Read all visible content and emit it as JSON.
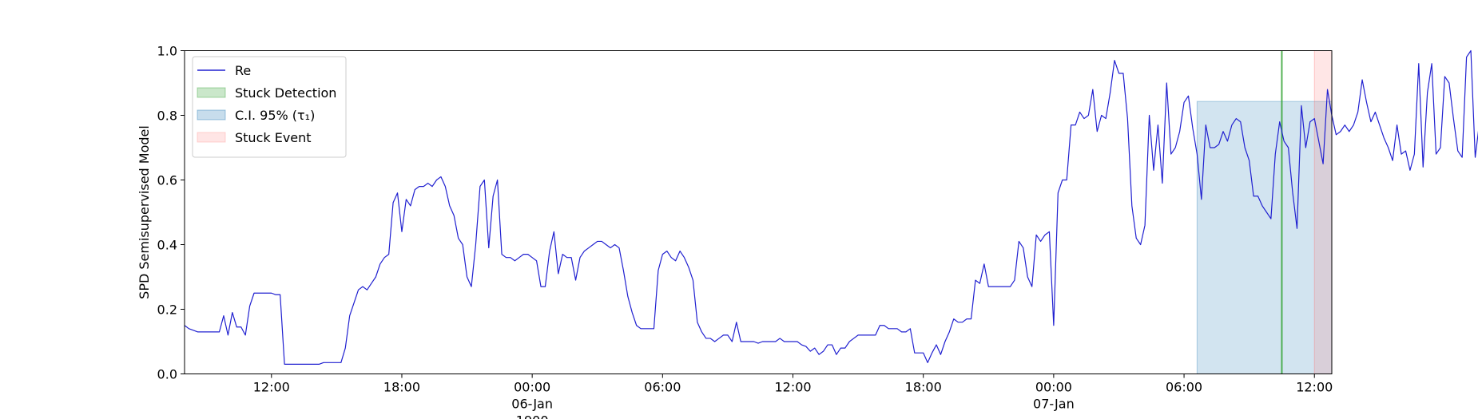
{
  "chart_data": {
    "type": "line",
    "ylabel": "SPD Semisupervised Model",
    "xlabel": "",
    "ylim": [
      0.0,
      1.0
    ],
    "xlim": [
      "1900-01-05T08:00",
      "1900-01-07T12:48"
    ],
    "yticks": [
      {
        "value": 0.0,
        "label": "0.0"
      },
      {
        "value": 0.2,
        "label": "0.2"
      },
      {
        "value": 0.4,
        "label": "0.4"
      },
      {
        "value": 0.6,
        "label": "0.6"
      },
      {
        "value": 0.8,
        "label": "0.8"
      },
      {
        "value": 1.0,
        "label": "1.0"
      }
    ],
    "xticks": [
      {
        "value": "1900-01-05T12:00",
        "label": "12:00"
      },
      {
        "value": "1900-01-05T18:00",
        "label": "18:00"
      },
      {
        "value": "1900-01-06T00:00",
        "label": "00:00",
        "sublabel": "06-Jan",
        "sublabel2": "1900"
      },
      {
        "value": "1900-01-06T06:00",
        "label": "06:00"
      },
      {
        "value": "1900-01-06T12:00",
        "label": "12:00"
      },
      {
        "value": "1900-01-06T18:00",
        "label": "18:00"
      },
      {
        "value": "1900-01-07T00:00",
        "label": "00:00",
        "sublabel": "07-Jan"
      },
      {
        "value": "1900-01-07T06:00",
        "label": "06:00"
      },
      {
        "value": "1900-01-07T12:00",
        "label": "12:00"
      }
    ],
    "grid": false,
    "legend": {
      "placement": "top-left",
      "entries": [
        {
          "label": "Re",
          "kind": "line",
          "color": "#2020d0"
        },
        {
          "label": "Stuck Detection",
          "kind": "patch",
          "color": "#2ca02c"
        },
        {
          "label": "C.I. 95% (τ₁)",
          "kind": "patch",
          "color": "#1f77b4"
        },
        {
          "label": "Stuck Event",
          "kind": "patch",
          "color": "#ff9896"
        }
      ]
    },
    "regions": [
      {
        "name": "C.I. 95% (τ₁)",
        "x0": "1900-01-07T06:36",
        "x1": "1900-01-07T12:48",
        "y0": 0.0,
        "y1": 0.843,
        "color": "#1f77b4",
        "opacity": 0.2
      },
      {
        "name": "Stuck Event",
        "x0": "1900-01-07T12:00",
        "x1": "1900-01-07T12:48",
        "y0": 0.0,
        "y1": 1.0,
        "color": "#ff6b6b",
        "opacity": 0.17
      }
    ],
    "vlines": [
      {
        "name": "Stuck Detection",
        "x": "1900-01-07T10:30",
        "color": "#2ca02c"
      }
    ],
    "series": [
      {
        "name": "Re",
        "color": "#2020d0",
        "x_start": "1900-01-05T08:00",
        "x_step_minutes": 12,
        "values": [
          0.15,
          0.14,
          0.135,
          0.13,
          0.13,
          0.13,
          0.13,
          0.13,
          0.13,
          0.18,
          0.12,
          0.19,
          0.145,
          0.145,
          0.12,
          0.21,
          0.25,
          0.25,
          0.25,
          0.25,
          0.25,
          0.245,
          0.245,
          0.03,
          0.03,
          0.03,
          0.03,
          0.03,
          0.03,
          0.03,
          0.03,
          0.03,
          0.035,
          0.035,
          0.035,
          0.035,
          0.035,
          0.08,
          0.18,
          0.22,
          0.26,
          0.27,
          0.26,
          0.28,
          0.3,
          0.34,
          0.36,
          0.37,
          0.53,
          0.56,
          0.44,
          0.54,
          0.52,
          0.57,
          0.58,
          0.58,
          0.59,
          0.58,
          0.6,
          0.61,
          0.58,
          0.52,
          0.49,
          0.42,
          0.4,
          0.3,
          0.27,
          0.4,
          0.58,
          0.6,
          0.39,
          0.55,
          0.6,
          0.37,
          0.36,
          0.36,
          0.35,
          0.36,
          0.37,
          0.37,
          0.36,
          0.35,
          0.27,
          0.27,
          0.38,
          0.44,
          0.31,
          0.37,
          0.36,
          0.36,
          0.29,
          0.36,
          0.38,
          0.39,
          0.4,
          0.41,
          0.41,
          0.4,
          0.39,
          0.4,
          0.39,
          0.32,
          0.24,
          0.19,
          0.15,
          0.14,
          0.14,
          0.14,
          0.14,
          0.32,
          0.37,
          0.38,
          0.36,
          0.35,
          0.38,
          0.36,
          0.33,
          0.29,
          0.16,
          0.13,
          0.11,
          0.11,
          0.1,
          0.11,
          0.12,
          0.12,
          0.1,
          0.16,
          0.1,
          0.1,
          0.1,
          0.1,
          0.095,
          0.1,
          0.1,
          0.1,
          0.1,
          0.11,
          0.1,
          0.1,
          0.1,
          0.1,
          0.09,
          0.085,
          0.07,
          0.08,
          0.06,
          0.07,
          0.09,
          0.09,
          0.06,
          0.08,
          0.08,
          0.1,
          0.11,
          0.12,
          0.12,
          0.12,
          0.12,
          0.12,
          0.15,
          0.15,
          0.14,
          0.14,
          0.14,
          0.13,
          0.13,
          0.14,
          0.065,
          0.065,
          0.065,
          0.035,
          0.065,
          0.09,
          0.06,
          0.1,
          0.13,
          0.17,
          0.16,
          0.16,
          0.17,
          0.17,
          0.29,
          0.28,
          0.34,
          0.27,
          0.27,
          0.27,
          0.27,
          0.27,
          0.27,
          0.29,
          0.41,
          0.39,
          0.3,
          0.27,
          0.43,
          0.41,
          0.43,
          0.44,
          0.15,
          0.56,
          0.6,
          0.6,
          0.77,
          0.77,
          0.81,
          0.79,
          0.8,
          0.88,
          0.75,
          0.8,
          0.79,
          0.87,
          0.97,
          0.93,
          0.93,
          0.79,
          0.52,
          0.42,
          0.4,
          0.46,
          0.8,
          0.63,
          0.77,
          0.59,
          0.9,
          0.68,
          0.7,
          0.75,
          0.84,
          0.86,
          0.76,
          0.68,
          0.54,
          0.77,
          0.7,
          0.7,
          0.71,
          0.75,
          0.72,
          0.77,
          0.79,
          0.78,
          0.7,
          0.66,
          0.55,
          0.55,
          0.52,
          0.5,
          0.48,
          0.68,
          0.78,
          0.72,
          0.7,
          0.56,
          0.45,
          0.83,
          0.7,
          0.78,
          0.79,
          0.72,
          0.65,
          0.88,
          0.8,
          0.74,
          0.75,
          0.77,
          0.75,
          0.77,
          0.81,
          0.91,
          0.84,
          0.78,
          0.81,
          0.77,
          0.73,
          0.7,
          0.66,
          0.77,
          0.68,
          0.69,
          0.63,
          0.68,
          0.96,
          0.64,
          0.87,
          0.96,
          0.68,
          0.7,
          0.92,
          0.9,
          0.79,
          0.69,
          0.67,
          0.98,
          1.0,
          0.67,
          0.78,
          0.66,
          0.8,
          0.76,
          0.76,
          0.95,
          0.72,
          0.88,
          0.85,
          0.72,
          0.96,
          0.94,
          0.86,
          0.82,
          0.8,
          0.81,
          0.81,
          0.8,
          0.76,
          0.86,
          0.7,
          0.89,
          0.74,
          0.69,
          0.56,
          0.45,
          0.39,
          0.56,
          0.35,
          0.32,
          0.46,
          0.3,
          0.37,
          0.45,
          0.17,
          0.17,
          0.22,
          0.33,
          0.44,
          0.36,
          0.46,
          0.34,
          0.34,
          0.37,
          0.33,
          0.36,
          0.36,
          0.36,
          0.37,
          0.35,
          0.5,
          0.4,
          0.41,
          0.47,
          0.49,
          0.55,
          0.54,
          0.56,
          0.56,
          0.07,
          0.07,
          0.085,
          0.09,
          0.095,
          0.13,
          0.13,
          0.13,
          0.135,
          0.13,
          0.13,
          0.13,
          0.13,
          0.13,
          0.13,
          0.13,
          0.13,
          0.13,
          0.13,
          0.13,
          0.13,
          0.13,
          0.13,
          0.13,
          0.13,
          0.13,
          0.13,
          0.135,
          0.16,
          0.17,
          0.175,
          0.18,
          0.19,
          0.19,
          0.22,
          0.23,
          0.23,
          0.23,
          0.23,
          0.23,
          0.232,
          0.232,
          0.232,
          0.23,
          0.23,
          0.225,
          0.225,
          0.22,
          0.215,
          0.21,
          0.205,
          0.205,
          0.203,
          0.203,
          0.203,
          0.22,
          0.23,
          0.228,
          0.225,
          0.225,
          0.225,
          0.225,
          0.225,
          0.225,
          0.225,
          0.225,
          0.225,
          0.225,
          0.225,
          0.225,
          0.225,
          0.225,
          0.225,
          0.225,
          0.225,
          0.225,
          0.225,
          0.2,
          0.2,
          0.21,
          0.23,
          0.24,
          0.45,
          0.25,
          0.46,
          0.19,
          0.18,
          0.16,
          0.15,
          0.2,
          0.17,
          0.15,
          0.16,
          0.18,
          0.17,
          0.17,
          0.27,
          0.23,
          0.27,
          0.35,
          0.37,
          0.38,
          0.5,
          0.5,
          0.47,
          0.55,
          0.58,
          0.6,
          0.62,
          0.6,
          0.69,
          0.64,
          0.72,
          0.7,
          0.91,
          0.63,
          0.71,
          0.67,
          0.7,
          0.75,
          0.76,
          0.77,
          0.71,
          0.7,
          0.72,
          0.74,
          0.68,
          0.65,
          0.6,
          0.6,
          0.6,
          0.61,
          0.76,
          0.72,
          0.61,
          0.61
        ]
      }
    ]
  }
}
